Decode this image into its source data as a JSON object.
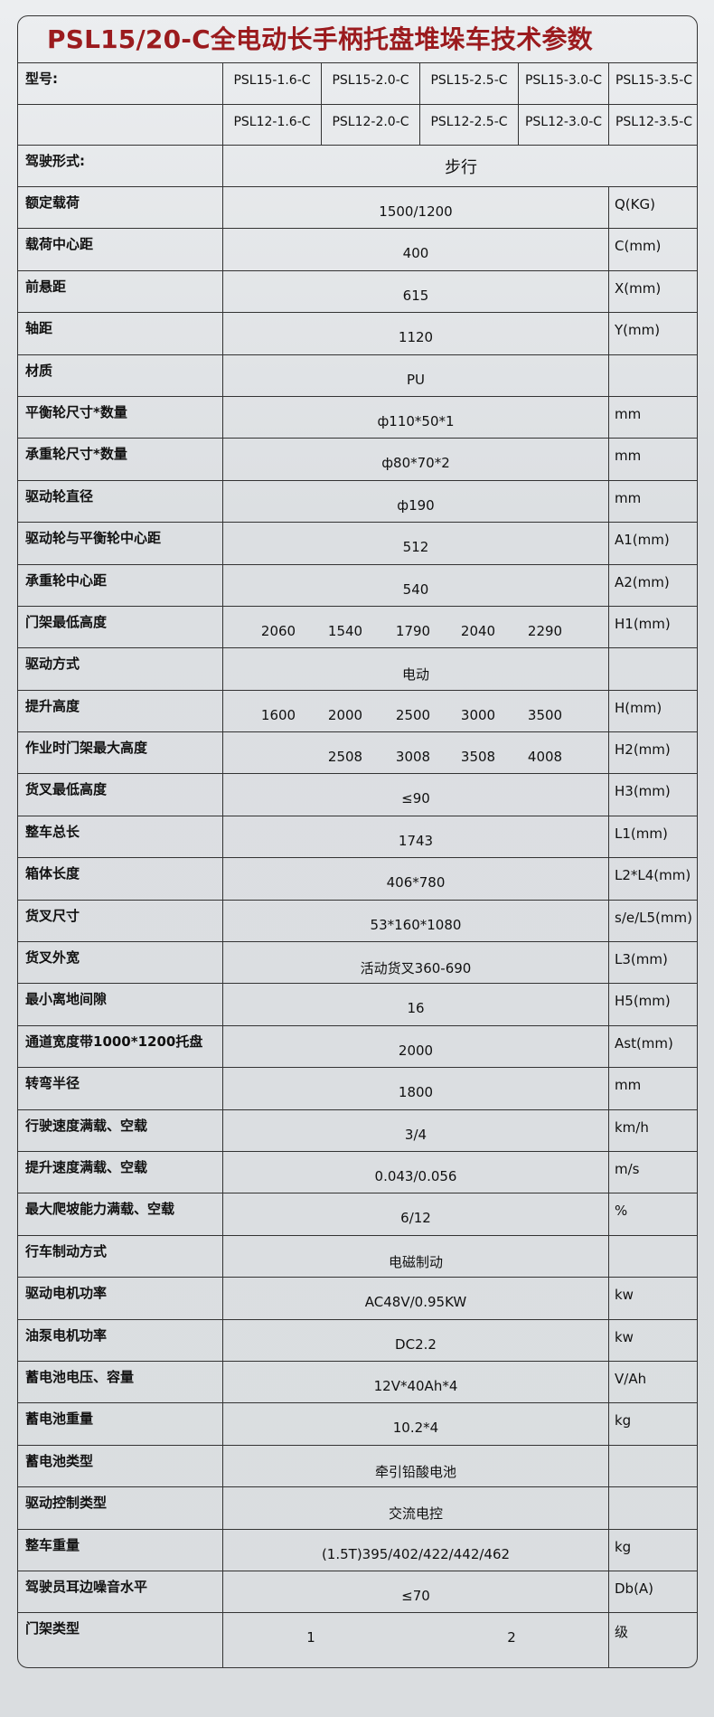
{
  "title": "PSL15/20-C全电动长手柄托盘堆垛车技术参数",
  "colors": {
    "title": "#9b1b1e",
    "border": "#333333"
  },
  "model_label": "型号:",
  "models_row1": [
    "PSL15-1.6-C",
    "PSL15-2.0-C",
    "PSL15-2.5-C",
    "PSL15-3.0-C",
    "PSL15-3.5-C"
  ],
  "models_row2": [
    "PSL12-1.6-C",
    "PSL12-2.0-C",
    "PSL12-2.5-C",
    "PSL12-3.0-C",
    "PSL12-3.5-C"
  ],
  "drive_label": "驾驶形式:",
  "drive_value": "步行",
  "rows": [
    {
      "label": "额定载荷",
      "value": "1500/1200",
      "unit": "Q(KG)"
    },
    {
      "label": "载荷中心距",
      "value": "400",
      "unit": "C(mm)"
    },
    {
      "label": "前悬距",
      "value": "615",
      "unit": "X(mm)"
    },
    {
      "label": "轴距",
      "value": "1120",
      "unit": "Y(mm)"
    },
    {
      "label": "材质",
      "value": "PU",
      "unit": ""
    },
    {
      "label": "平衡轮尺寸*数量",
      "value": "ф110*50*1",
      "unit": "mm"
    },
    {
      "label": "承重轮尺寸*数量",
      "value": "ф80*70*2",
      "unit": "mm"
    },
    {
      "label": "驱动轮直径",
      "value": "ф190",
      "unit": "mm"
    },
    {
      "label": "驱动轮与平衡轮中心距",
      "value": "512",
      "unit": "A1(mm)"
    },
    {
      "label": "承重轮中心距",
      "value": "540",
      "unit": "A2(mm)"
    },
    {
      "label": "门架最低高度",
      "values": [
        "2060",
        "1540",
        "1790",
        "2040",
        "2290"
      ],
      "unit": "H1(mm)"
    },
    {
      "label": "驱动方式",
      "value": "电动",
      "unit": ""
    },
    {
      "label": "提升高度",
      "values": [
        "1600",
        "2000",
        "2500",
        "3000",
        "3500"
      ],
      "unit": "H(mm)"
    },
    {
      "label": "作业时门架最大高度",
      "values": [
        "",
        "2508",
        "3008",
        "3508",
        "4008"
      ],
      "unit": "H2(mm)"
    },
    {
      "label": "货叉最低高度",
      "value": "≤90",
      "unit": "H3(mm)"
    },
    {
      "label": "整车总长",
      "value": "1743",
      "unit": "L1(mm)"
    },
    {
      "label": "箱体长度",
      "value": "406*780",
      "unit": "L2*L4(mm)"
    },
    {
      "label": "货叉尺寸",
      "value": "53*160*1080",
      "unit": "s/e/L5(mm)"
    },
    {
      "label": "货叉外宽",
      "value": "活动货叉360-690",
      "unit": "L3(mm)"
    },
    {
      "label": "最小离地间隙",
      "value": "16",
      "unit": "H5(mm)"
    },
    {
      "label": "通道宽度带1000*1200托盘",
      "value": "2000",
      "unit": "Ast(mm)"
    },
    {
      "label": "转弯半径",
      "value": "1800",
      "unit": "mm"
    },
    {
      "label": "行驶速度满载、空载",
      "value": "3/4",
      "unit": "km/h"
    },
    {
      "label": "提升速度满载、空载",
      "value": "0.043/0.056",
      "unit": "m/s"
    },
    {
      "label": "最大爬坡能力满载、空载",
      "value": "6/12",
      "unit": "%"
    },
    {
      "label": "行车制动方式",
      "value": "电磁制动",
      "unit": ""
    },
    {
      "label": "驱动电机功率",
      "value": "AC48V/0.95KW",
      "unit": "kw"
    },
    {
      "label": "油泵电机功率",
      "value": "DC2.2",
      "unit": "kw"
    },
    {
      "label": "蓄电池电压、容量",
      "value": "12V*40Ah*4",
      "unit": "V/Ah"
    },
    {
      "label": "蓄电池重量",
      "value": "10.2*4",
      "unit": "kg"
    },
    {
      "label": "蓄电池类型",
      "value": "牵引铅酸电池",
      "unit": ""
    },
    {
      "label": "驱动控制类型",
      "value": "交流电控",
      "unit": ""
    },
    {
      "label": "整车重量",
      "value": "(1.5T)395/402/422/442/462",
      "unit": "kg"
    },
    {
      "label": "驾驶员耳边噪音水平",
      "value": "≤70",
      "unit": "Db(A)"
    },
    {
      "label": "门架类型",
      "mast": [
        "1",
        "2"
      ],
      "unit": "级"
    }
  ]
}
